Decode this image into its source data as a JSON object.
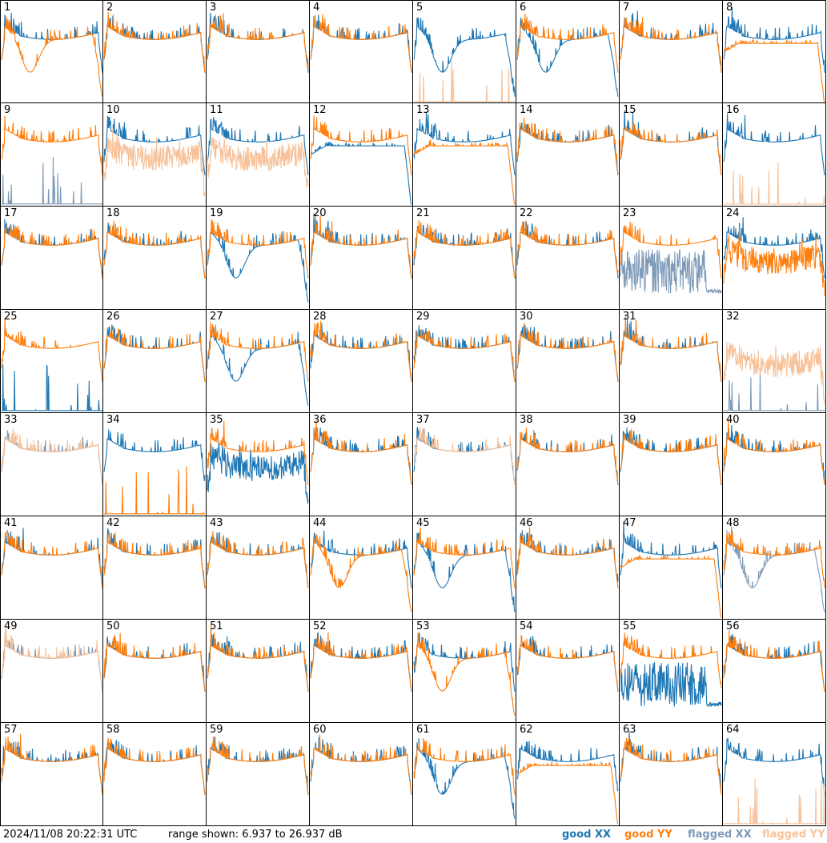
{
  "footer": {
    "timestamp": "2024/11/08 20:22:31 UTC",
    "range": "range shown: 6.937 to 26.937 dB"
  },
  "legend": [
    {
      "label_a": "good ",
      "label_b": "XX",
      "color": "#1f77b4"
    },
    {
      "label_a": "good ",
      "label_b": "YY",
      "color": "#ff7f0e"
    },
    {
      "label_a": "flagged ",
      "label_b": "XX",
      "color": "#7f9bb8"
    },
    {
      "label_a": "flagged ",
      "label_b": "YY",
      "color": "#f7c29a"
    }
  ],
  "chart_data": {
    "type": "line",
    "grid": "8x8 small multiples, antenna spectra",
    "ylim": [
      6.937,
      26.937
    ],
    "colors": {
      "good_xx": "#1f77b4",
      "good_yy": "#ff7f0e",
      "flagged_xx": "#7f9bb8",
      "flagged_yy": "#f7c29a"
    },
    "panels": [
      {
        "label": "1",
        "xx": "good",
        "yy": "good",
        "xx_profile": "normal",
        "yy_profile": "dip"
      },
      {
        "label": "2",
        "xx": "good",
        "yy": "good",
        "xx_profile": "normal",
        "yy_profile": "normal"
      },
      {
        "label": "3",
        "xx": "good",
        "yy": "good",
        "xx_profile": "normal",
        "yy_profile": "normal"
      },
      {
        "label": "4",
        "xx": "good",
        "yy": "good",
        "xx_profile": "normal",
        "yy_profile": "normal"
      },
      {
        "label": "5",
        "xx": "good",
        "yy": "flagged",
        "xx_profile": "dip",
        "yy_profile": "spikes"
      },
      {
        "label": "6",
        "xx": "good",
        "yy": "good",
        "xx_profile": "dip",
        "yy_profile": "normal"
      },
      {
        "label": "7",
        "xx": "good",
        "yy": "good",
        "xx_profile": "normal",
        "yy_profile": "normal"
      },
      {
        "label": "8",
        "xx": "good",
        "yy": "good",
        "xx_profile": "normal",
        "yy_profile": "lowflat"
      },
      {
        "label": "9",
        "xx": "flagged",
        "yy": "good",
        "xx_profile": "spikes",
        "yy_profile": "normal"
      },
      {
        "label": "10",
        "xx": "good",
        "yy": "flagged",
        "xx_profile": "normal",
        "yy_profile": "noisy"
      },
      {
        "label": "11",
        "xx": "good",
        "yy": "flagged",
        "xx_profile": "normal",
        "yy_profile": "noisy"
      },
      {
        "label": "12",
        "xx": "good",
        "yy": "good",
        "xx_profile": "lowflat",
        "yy_profile": "normal"
      },
      {
        "label": "13",
        "xx": "good",
        "yy": "good",
        "xx_profile": "normal",
        "yy_profile": "lowflat"
      },
      {
        "label": "14",
        "xx": "good",
        "yy": "good",
        "xx_profile": "normal",
        "yy_profile": "normal"
      },
      {
        "label": "15",
        "xx": "good",
        "yy": "good",
        "xx_profile": "normal",
        "yy_profile": "normal"
      },
      {
        "label": "16",
        "xx": "good",
        "yy": "flagged",
        "xx_profile": "normal",
        "yy_profile": "spikes"
      },
      {
        "label": "17",
        "xx": "good",
        "yy": "good",
        "xx_profile": "normal",
        "yy_profile": "normal"
      },
      {
        "label": "18",
        "xx": "good",
        "yy": "good",
        "xx_profile": "normal",
        "yy_profile": "normal"
      },
      {
        "label": "19",
        "xx": "good",
        "yy": "good",
        "xx_profile": "dip",
        "yy_profile": "normal"
      },
      {
        "label": "20",
        "xx": "good",
        "yy": "good",
        "xx_profile": "normal",
        "yy_profile": "normal"
      },
      {
        "label": "21",
        "xx": "good",
        "yy": "good",
        "xx_profile": "normal",
        "yy_profile": "normal"
      },
      {
        "label": "22",
        "xx": "good",
        "yy": "good",
        "xx_profile": "normal",
        "yy_profile": "normal"
      },
      {
        "label": "23",
        "xx": "flagged",
        "yy": "good",
        "xx_profile": "noisy_low",
        "yy_profile": "normal"
      },
      {
        "label": "24",
        "xx": "good",
        "yy": "good",
        "xx_profile": "normal",
        "yy_profile": "noisy"
      },
      {
        "label": "25",
        "xx": "good",
        "yy": "good",
        "xx_profile": "spikes",
        "yy_profile": "normal"
      },
      {
        "label": "26",
        "xx": "good",
        "yy": "good",
        "xx_profile": "normal",
        "yy_profile": "normal"
      },
      {
        "label": "27",
        "xx": "good",
        "yy": "good",
        "xx_profile": "dip",
        "yy_profile": "normal"
      },
      {
        "label": "28",
        "xx": "good",
        "yy": "good",
        "xx_profile": "normal",
        "yy_profile": "normal"
      },
      {
        "label": "29",
        "xx": "good",
        "yy": "good",
        "xx_profile": "normal",
        "yy_profile": "normal"
      },
      {
        "label": "30",
        "xx": "good",
        "yy": "good",
        "xx_profile": "normal",
        "yy_profile": "normal"
      },
      {
        "label": "31",
        "xx": "good",
        "yy": "good",
        "xx_profile": "normal",
        "yy_profile": "normal"
      },
      {
        "label": "32",
        "xx": "flagged",
        "yy": "flagged",
        "xx_profile": "spikes",
        "yy_profile": "noisy"
      },
      {
        "label": "33",
        "xx": "flagged",
        "yy": "flagged",
        "xx_profile": "normal",
        "yy_profile": "normal"
      },
      {
        "label": "34",
        "xx": "good",
        "yy": "good",
        "xx_profile": "normal",
        "yy_profile": "spikes"
      },
      {
        "label": "35",
        "xx": "good",
        "yy": "good",
        "xx_profile": "noisy",
        "yy_profile": "normal"
      },
      {
        "label": "36",
        "xx": "good",
        "yy": "good",
        "xx_profile": "normal",
        "yy_profile": "normal"
      },
      {
        "label": "37",
        "xx": "good",
        "yy": "flagged",
        "xx_profile": "normal",
        "yy_profile": "normal"
      },
      {
        "label": "38",
        "xx": "good",
        "yy": "good",
        "xx_profile": "normal",
        "yy_profile": "normal"
      },
      {
        "label": "39",
        "xx": "good",
        "yy": "good",
        "xx_profile": "normal",
        "yy_profile": "normal"
      },
      {
        "label": "40",
        "xx": "good",
        "yy": "good",
        "xx_profile": "normal",
        "yy_profile": "normal"
      },
      {
        "label": "41",
        "xx": "good",
        "yy": "good",
        "xx_profile": "normal",
        "yy_profile": "normal"
      },
      {
        "label": "42",
        "xx": "good",
        "yy": "good",
        "xx_profile": "normal",
        "yy_profile": "normal"
      },
      {
        "label": "43",
        "xx": "good",
        "yy": "good",
        "xx_profile": "normal",
        "yy_profile": "normal"
      },
      {
        "label": "44",
        "xx": "good",
        "yy": "good",
        "xx_profile": "normal",
        "yy_profile": "dip"
      },
      {
        "label": "45",
        "xx": "good",
        "yy": "good",
        "xx_profile": "dip",
        "yy_profile": "normal"
      },
      {
        "label": "46",
        "xx": "good",
        "yy": "good",
        "xx_profile": "normal",
        "yy_profile": "normal"
      },
      {
        "label": "47",
        "xx": "good",
        "yy": "good",
        "xx_profile": "normal",
        "yy_profile": "lowflat"
      },
      {
        "label": "48",
        "xx": "flagged",
        "yy": "good",
        "xx_profile": "dip",
        "yy_profile": "normal"
      },
      {
        "label": "49",
        "xx": "flagged",
        "yy": "flagged",
        "xx_profile": "normal",
        "yy_profile": "normal"
      },
      {
        "label": "50",
        "xx": "good",
        "yy": "good",
        "xx_profile": "normal",
        "yy_profile": "normal"
      },
      {
        "label": "51",
        "xx": "good",
        "yy": "good",
        "xx_profile": "normal",
        "yy_profile": "normal"
      },
      {
        "label": "52",
        "xx": "good",
        "yy": "good",
        "xx_profile": "normal",
        "yy_profile": "normal"
      },
      {
        "label": "53",
        "xx": "good",
        "yy": "good",
        "xx_profile": "normal",
        "yy_profile": "dip"
      },
      {
        "label": "54",
        "xx": "good",
        "yy": "good",
        "xx_profile": "normal",
        "yy_profile": "normal"
      },
      {
        "label": "55",
        "xx": "good",
        "yy": "good",
        "xx_profile": "noisy_low",
        "yy_profile": "normal"
      },
      {
        "label": "56",
        "xx": "good",
        "yy": "good",
        "xx_profile": "normal",
        "yy_profile": "normal"
      },
      {
        "label": "57",
        "xx": "good",
        "yy": "good",
        "xx_profile": "normal",
        "yy_profile": "normal"
      },
      {
        "label": "58",
        "xx": "good",
        "yy": "good",
        "xx_profile": "normal",
        "yy_profile": "normal"
      },
      {
        "label": "59",
        "xx": "good",
        "yy": "good",
        "xx_profile": "normal",
        "yy_profile": "normal"
      },
      {
        "label": "60",
        "xx": "good",
        "yy": "good",
        "xx_profile": "normal",
        "yy_profile": "normal"
      },
      {
        "label": "61",
        "xx": "good",
        "yy": "good",
        "xx_profile": "dip",
        "yy_profile": "normal"
      },
      {
        "label": "62",
        "xx": "good",
        "yy": "good",
        "xx_profile": "normal",
        "yy_profile": "lowflat"
      },
      {
        "label": "63",
        "xx": "good",
        "yy": "good",
        "xx_profile": "normal",
        "yy_profile": "normal"
      },
      {
        "label": "64",
        "xx": "good",
        "yy": "flagged",
        "xx_profile": "normal",
        "yy_profile": "spikes"
      }
    ]
  }
}
